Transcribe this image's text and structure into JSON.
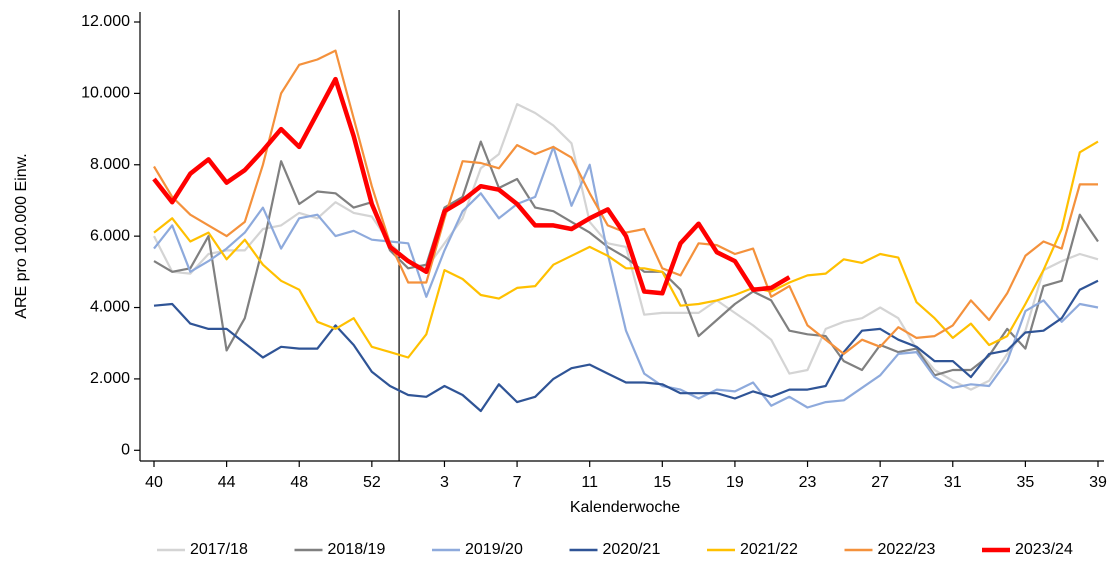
{
  "chart_data": {
    "type": "line",
    "ylabel": "ARE pro 100.000 Einw.",
    "xlabel": "Kalenderwoche",
    "categories": [
      "40",
      null,
      null,
      null,
      "44",
      null,
      null,
      null,
      "48",
      null,
      null,
      null,
      "52",
      null,
      null,
      null,
      "3",
      null,
      null,
      null,
      "7",
      null,
      null,
      null,
      "11",
      null,
      null,
      null,
      "15",
      null,
      null,
      null,
      "19",
      null,
      null,
      null,
      "23",
      null,
      null,
      null,
      "27",
      null,
      null,
      null,
      "31",
      null,
      null,
      null,
      "35",
      null,
      null,
      null,
      "39"
    ],
    "ylim": [
      -300,
      12000
    ],
    "yticks": [
      0,
      {
        "value": 2000,
        "label": "2.000"
      },
      {
        "value": 4000,
        "label": "4.000"
      },
      {
        "value": 6000,
        "label": "6.000"
      },
      {
        "value": 8000,
        "label": "8.000"
      },
      {
        "value": 10000,
        "label": "10.000"
      },
      {
        "value": 12000,
        "label": "12.000"
      }
    ],
    "grid": false,
    "legend": "bottom",
    "series": [
      {
        "name": "2017/18",
        "color": "#d4d4d4",
        "values": [
          6000,
          5000,
          4950,
          5500,
          5600,
          5600,
          6200,
          6300,
          6650,
          6500,
          6950,
          6650,
          6550,
          5800,
          5300,
          5100,
          5800,
          6500,
          7900,
          8300,
          9700,
          9450,
          9100,
          8600,
          6400,
          5800,
          5700,
          3800,
          3850,
          3850,
          3850,
          4200,
          3850,
          3500,
          3100,
          2150,
          2250,
          3400,
          3600,
          3700,
          4000,
          3700,
          2850,
          2250,
          1950,
          1700,
          1950,
          2700,
          3350,
          5050,
          5300,
          5500,
          5350
        ]
      },
      {
        "name": "2018/19",
        "color": "#808080",
        "values": [
          5300,
          5000,
          5100,
          6000,
          2800,
          3700,
          5700,
          8100,
          6900,
          7250,
          7200,
          6800,
          6950,
          5600,
          5100,
          5200,
          6800,
          7100,
          8650,
          7350,
          7600,
          6800,
          6700,
          6400,
          6100,
          5700,
          5400,
          5000,
          5000,
          4500,
          3200,
          3650,
          4100,
          4450,
          4200,
          3350,
          3250,
          3200,
          2500,
          2250,
          2950,
          2750,
          2850,
          2100,
          2250,
          2250,
          2650,
          3400,
          2850,
          4600,
          4750,
          6600,
          5850
        ]
      },
      {
        "name": "2019/20",
        "color": "#8eaadc",
        "values": [
          5650,
          6300,
          5000,
          5300,
          5650,
          6100,
          6800,
          5650,
          6500,
          6600,
          6000,
          6150,
          5900,
          5850,
          5800,
          4300,
          5600,
          6700,
          7200,
          6500,
          6900,
          7100,
          8500,
          6850,
          8000,
          5500,
          3350,
          2150,
          1800,
          1700,
          1450,
          1700,
          1650,
          1900,
          1250,
          1500,
          1200,
          1350,
          1400,
          1750,
          2100,
          2700,
          2750,
          2050,
          1750,
          1850,
          1800,
          2500,
          3900,
          4200,
          3600,
          4100,
          4000
        ]
      },
      {
        "name": "2020/21",
        "color": "#2f5496",
        "values": [
          4050,
          4100,
          3550,
          3400,
          3400,
          3000,
          2600,
          2900,
          2850,
          2850,
          3500,
          2950,
          2200,
          1800,
          1550,
          1500,
          1800,
          1550,
          1100,
          1850,
          1350,
          1500,
          2000,
          2300,
          2400,
          2150,
          1900,
          1900,
          1850,
          1600,
          1600,
          1600,
          1450,
          1650,
          1500,
          1700,
          1700,
          1800,
          2750,
          3350,
          3400,
          3100,
          2900,
          2500,
          2500,
          2050,
          2700,
          2800,
          3300,
          3350,
          3700,
          4500,
          4750
        ]
      },
      {
        "name": "2021/22",
        "color": "#ffc000",
        "values": [
          6100,
          6500,
          5850,
          6100,
          5350,
          5900,
          5200,
          4750,
          4500,
          3600,
          3400,
          3700,
          2900,
          2750,
          2600,
          3250,
          5050,
          4800,
          4350,
          4250,
          4550,
          4600,
          5200,
          5450,
          5700,
          5450,
          5100,
          5100,
          5000,
          4050,
          4100,
          4200,
          4350,
          4550,
          4450,
          4700,
          4900,
          4950,
          5350,
          5250,
          5500,
          5400,
          4150,
          3700,
          3150,
          3550,
          2950,
          3200,
          4100,
          5050,
          6200,
          8350,
          8650
        ]
      },
      {
        "name": "2022/23",
        "color": "#f4913c",
        "values": [
          7950,
          7100,
          6600,
          6300,
          6000,
          6400,
          8000,
          10000,
          10800,
          10950,
          11200,
          9300,
          7400,
          5800,
          4700,
          4700,
          6500,
          8100,
          8050,
          7900,
          8550,
          8300,
          8500,
          8200,
          7200,
          6300,
          6100,
          6200,
          5100,
          4900,
          5800,
          5750,
          5500,
          5650,
          4300,
          4600,
          3500,
          3100,
          2700,
          3100,
          2900,
          3450,
          3150,
          3200,
          3500,
          4200,
          3650,
          4400,
          5450,
          5850,
          5650,
          7450,
          7450
        ]
      },
      {
        "name": "2023/24",
        "color": "#ff0000",
        "values": [
          7600,
          6950,
          7750,
          8150,
          7500,
          7850,
          8400,
          9000,
          8500,
          9450,
          10400,
          8800,
          6900,
          5700,
          5300,
          5000,
          6700,
          7000,
          7400,
          7300,
          6900,
          6300,
          6300,
          6200,
          6500,
          6750,
          6000,
          4450,
          4400,
          5800,
          6350,
          5550,
          5300,
          4500,
          4550,
          4850,
          null,
          null,
          null,
          null,
          null,
          null,
          null,
          null,
          null,
          null,
          null,
          null,
          null,
          null,
          null,
          null,
          null
        ]
      }
    ]
  }
}
